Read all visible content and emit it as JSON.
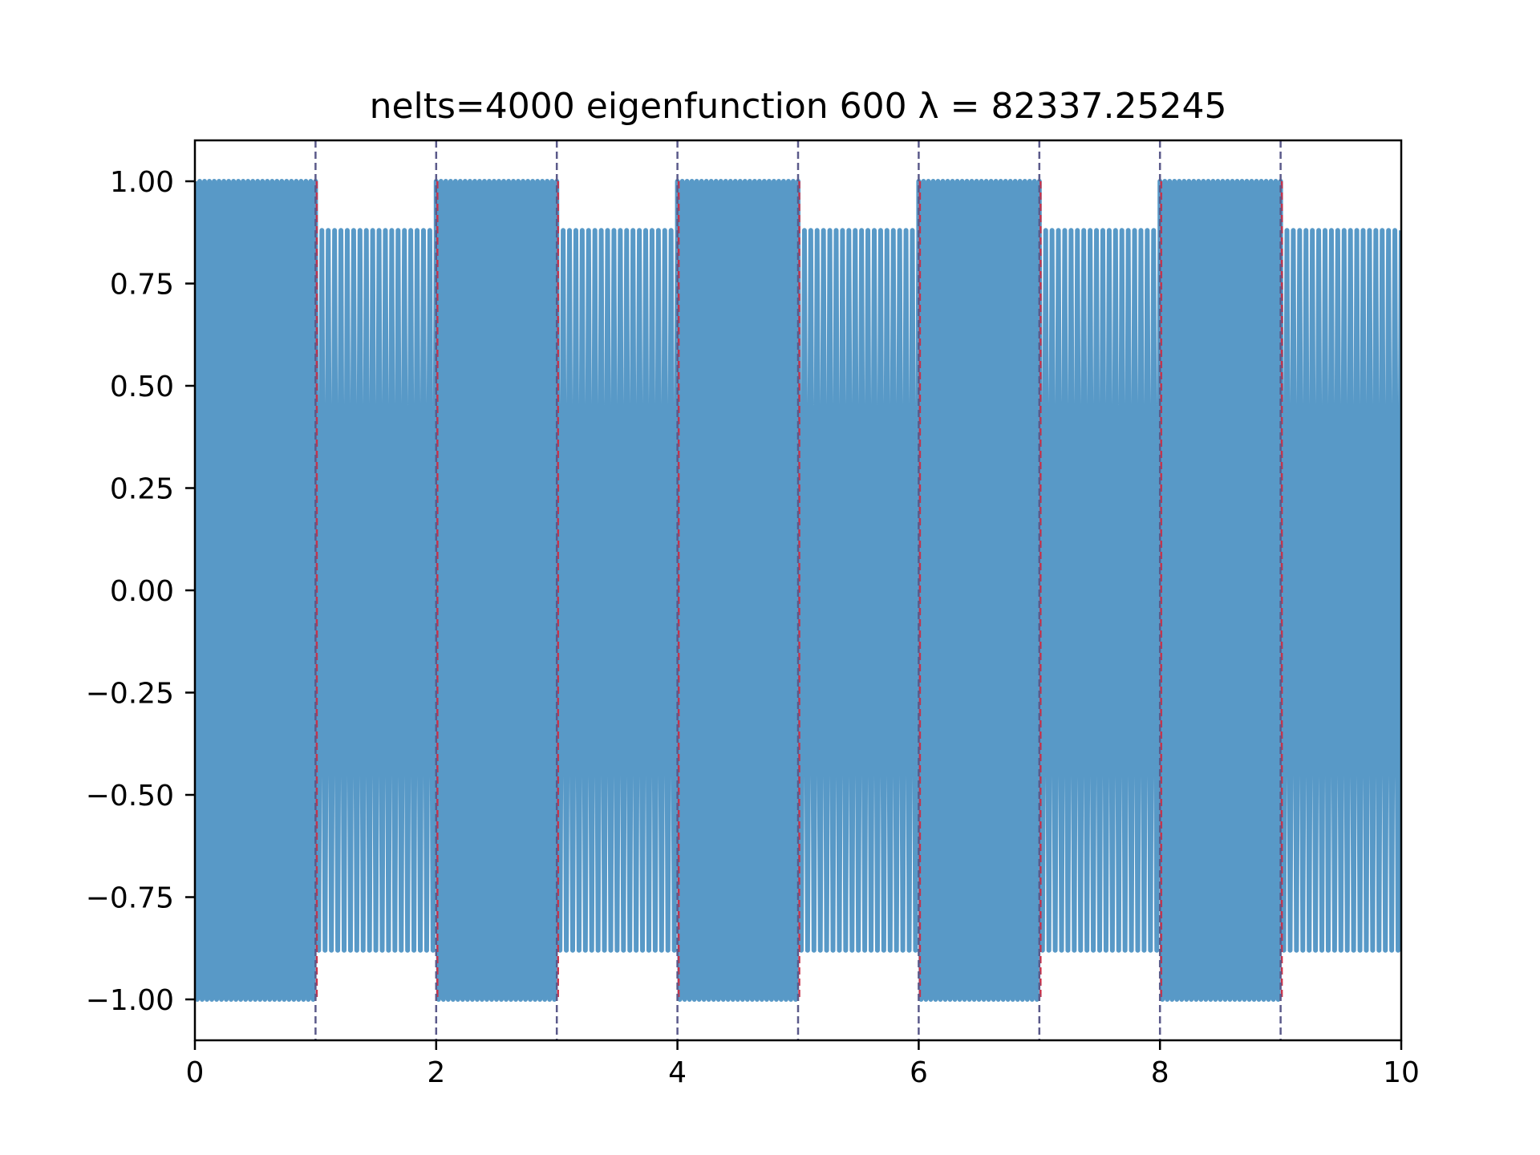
{
  "chart_data": {
    "type": "line",
    "title": "nelts=4000  eigenfunction 600  λ = 82337.25245",
    "xlabel": "",
    "ylabel": "",
    "xlim": [
      0,
      10
    ],
    "ylim": [
      -1.1,
      1.1
    ],
    "x_ticks": [
      0,
      2,
      4,
      6,
      8,
      10
    ],
    "x_tick_labels": [
      "0",
      "2",
      "4",
      "6",
      "8",
      "10"
    ],
    "y_ticks": [
      1.0,
      0.75,
      0.5,
      0.25,
      0.0,
      -0.25,
      -0.5,
      -0.75,
      -1.0
    ],
    "y_tick_labels": [
      "1.00",
      "0.75",
      "0.50",
      "0.25",
      "0.00",
      "−0.25",
      "−0.50",
      "−0.75",
      "−1.00"
    ],
    "grid": false,
    "series": [
      {
        "color": "#5899c7",
        "segments": [
          {
            "x_start": 0,
            "x_end": 1,
            "amplitude": 1.0,
            "cycles": 25
          },
          {
            "x_start": 1,
            "x_end": 2,
            "amplitude": 0.88,
            "cycles": 19
          },
          {
            "x_start": 2,
            "x_end": 3,
            "amplitude": 1.0,
            "cycles": 25
          },
          {
            "x_start": 3,
            "x_end": 4,
            "amplitude": 0.88,
            "cycles": 19
          },
          {
            "x_start": 4,
            "x_end": 5,
            "amplitude": 1.0,
            "cycles": 25
          },
          {
            "x_start": 5,
            "x_end": 6,
            "amplitude": 0.88,
            "cycles": 19
          },
          {
            "x_start": 6,
            "x_end": 7,
            "amplitude": 1.0,
            "cycles": 25
          },
          {
            "x_start": 7,
            "x_end": 8,
            "amplitude": 0.88,
            "cycles": 19
          },
          {
            "x_start": 8,
            "x_end": 9,
            "amplitude": 1.0,
            "cycles": 25
          },
          {
            "x_start": 9,
            "x_end": 10,
            "amplitude": 0.88,
            "cycles": 19
          }
        ]
      }
    ],
    "vlines": {
      "x": [
        1,
        2,
        3,
        4,
        5,
        6,
        7,
        8,
        9
      ],
      "style": "dashed",
      "color": "#5b5a8a",
      "accent_color": "#c8324a"
    }
  }
}
